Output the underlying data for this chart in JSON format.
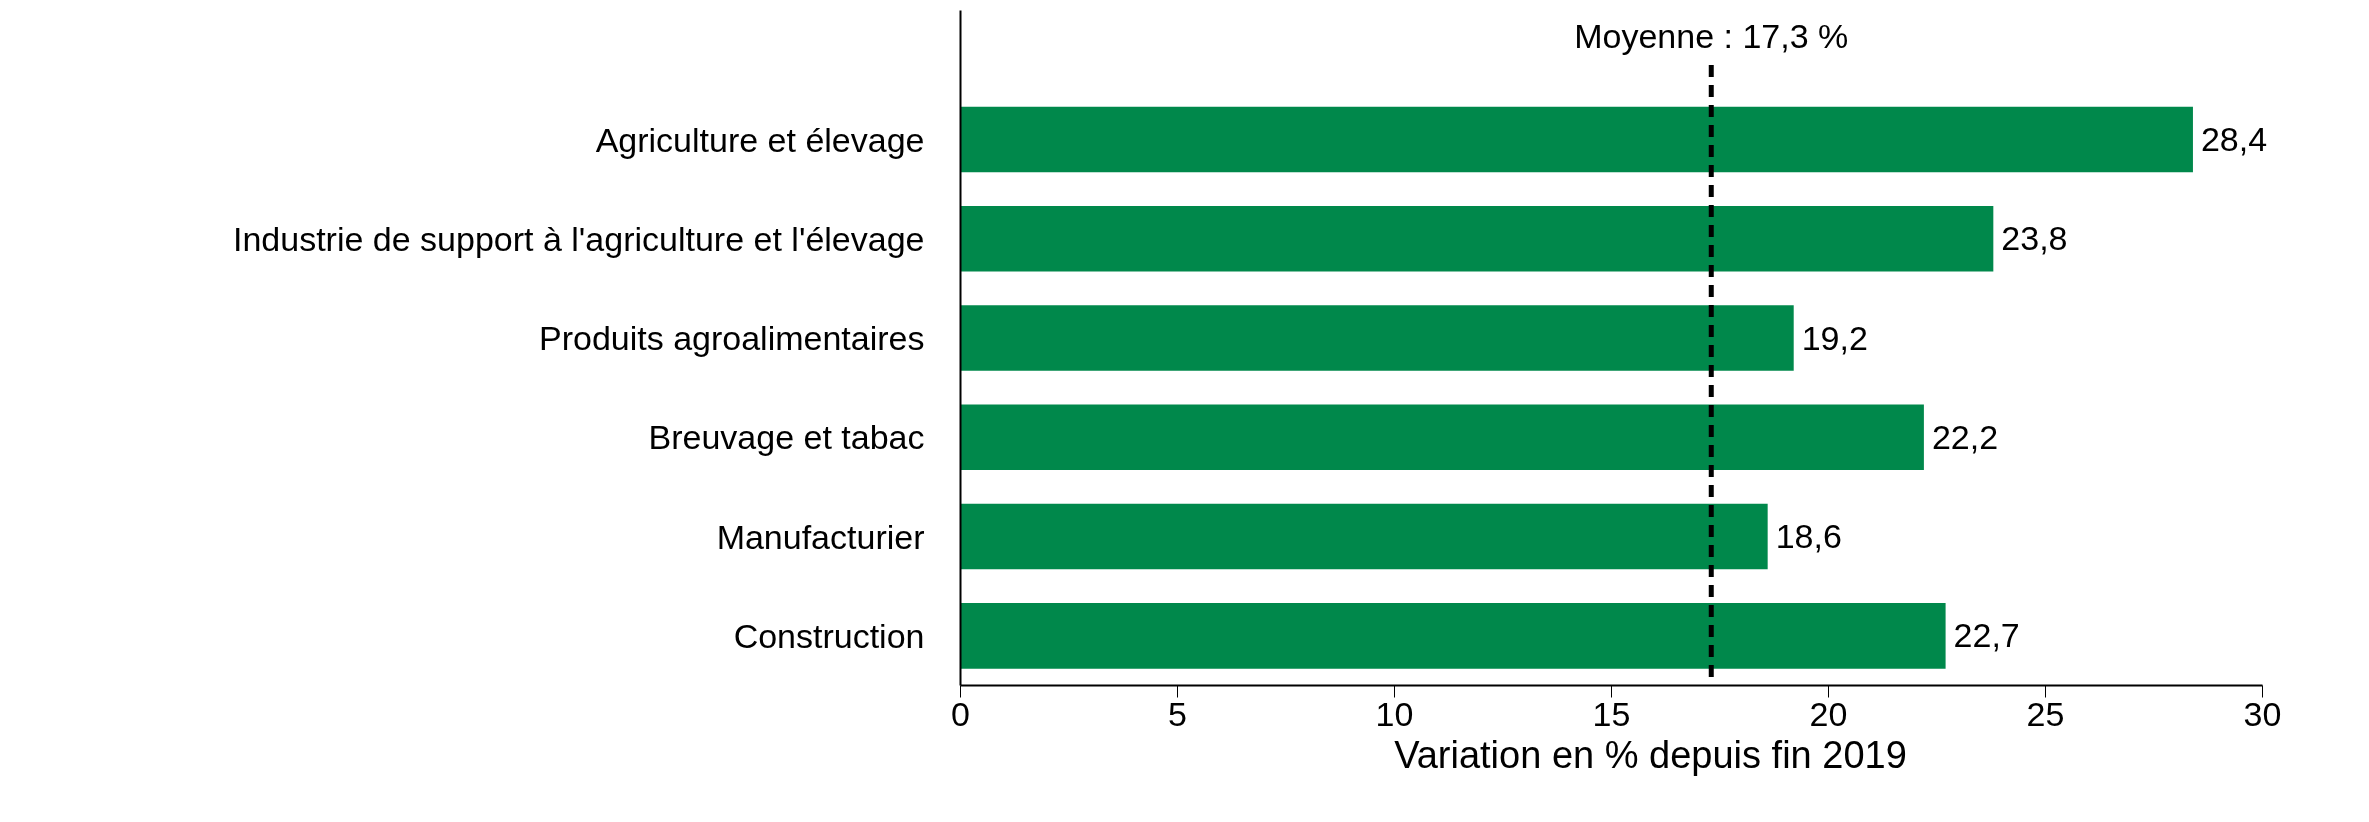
{
  "chart_data": {
    "type": "bar",
    "orientation": "horizontal",
    "xlabel": "Variation en % depuis fin 2019",
    "categories": [
      "Agriculture et élevage",
      "Industrie de support à l'agriculture et l'élevage",
      "Produits agroalimentaires",
      "Breuvage et tabac",
      "Manufacturier",
      "Construction"
    ],
    "values": [
      28.4,
      23.8,
      19.2,
      22.2,
      18.6,
      22.7
    ],
    "value_labels": [
      "28,4",
      "23,8",
      "19,2",
      "22,2",
      "18,6",
      "22,7"
    ],
    "color": "#00884b",
    "xlim": [
      0,
      30
    ],
    "xticks": [
      0,
      5,
      10,
      15,
      20,
      25,
      30
    ],
    "ref_lines": [
      {
        "axis": "x",
        "value": 17.3,
        "label": "Moyenne : 17,3 %",
        "color": "#000000",
        "line_style": "dashed"
      }
    ],
    "grid": false
  }
}
